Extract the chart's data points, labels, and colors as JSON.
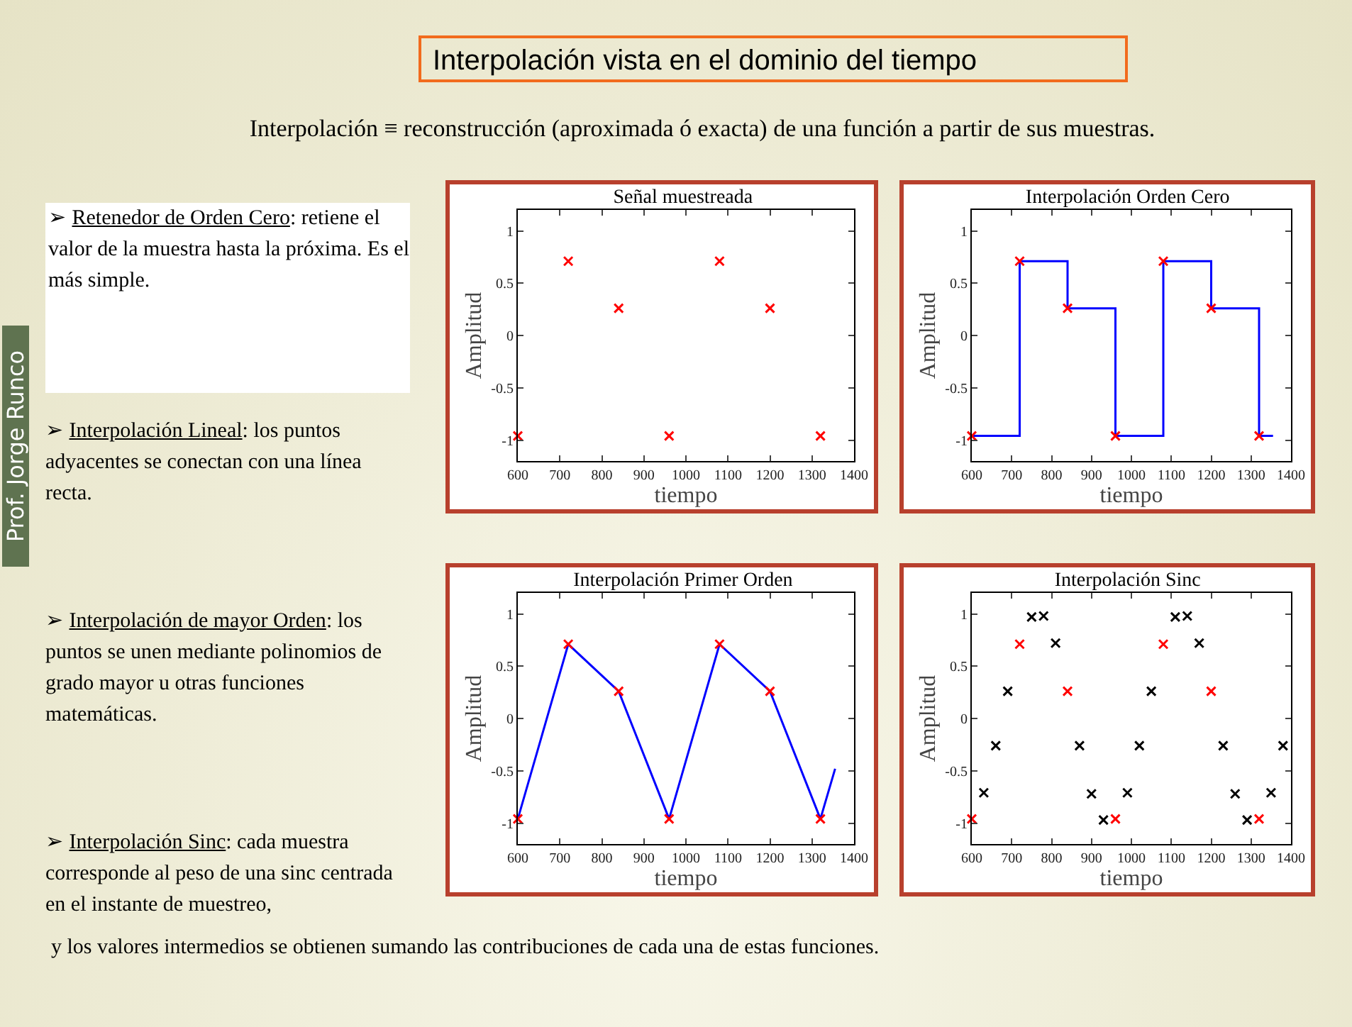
{
  "chart_data": [
    {
      "type": "other",
      "title": "Interpolación vista en el dominio del tiempo",
      "subtitle": "Interpolación ≡ reconstrucción (aproximada ó exacta) de una función a partir de sus muestras.",
      "annotations": [
        "➢ Retenedor de Orden Cero: retiene el valor de la muestra hasta la próxima. Es el más simple.",
        "➢ Interpolación Lineal: los puntos adyacentes se conectan con una línea recta.",
        "➢ Interpolación de mayor Orden: los puntos se unen mediante polinomios de grado mayor u otras funciones matemáticas.",
        "➢ Interpolación Sinc: cada muestra corresponde al peso de una sinc centrada en el instante de muestreo,",
        "y los valores intermedios se obtienen sumando las contribuciones de cada una de estas funciones.",
        "Prof. Jorge Runco"
      ]
    },
    {
      "type": "scatter",
      "title": "Señal muestreada",
      "xlabel": "tiempo",
      "ylabel": "Amplitud",
      "xlim": [
        600,
        1400
      ],
      "xticks": [
        600,
        700,
        800,
        900,
        1000,
        1100,
        1200,
        1300,
        1400
      ],
      "ylim": [
        -1.2,
        1.2
      ],
      "yticks": [
        -1,
        -0.5,
        0,
        0.5,
        1
      ],
      "grid": false,
      "marker": "cross",
      "series": [
        {
          "type": "scatter",
          "color": "#ff0000",
          "x": [
            600,
            720,
            840,
            960,
            1080,
            1200,
            1320
          ],
          "values": [
            -0.96,
            0.71,
            0.26,
            -0.96,
            0.71,
            0.26,
            -0.96
          ]
        }
      ]
    },
    {
      "type": "step",
      "title": "Interpolación Orden Cero",
      "xlabel": "tiempo",
      "ylabel": "Amplitud",
      "xlim": [
        600,
        1400
      ],
      "xticks": [
        600,
        700,
        800,
        900,
        1000,
        1100,
        1200,
        1300,
        1400
      ],
      "ylim": [
        -1.2,
        1.2
      ],
      "yticks": [
        -1,
        -0.5,
        0,
        0.5,
        1
      ],
      "grid": false,
      "marker": "cross",
      "line_style": "solid",
      "series": [
        {
          "type": "step",
          "marker": "none",
          "color": "#0000ff",
          "x": [
            600,
            720,
            840,
            960,
            1080,
            1200,
            1320,
            1355
          ],
          "values": [
            -0.96,
            0.71,
            0.26,
            -0.96,
            0.71,
            0.26,
            -0.96,
            -0.96
          ]
        },
        {
          "type": "scatter",
          "color": "#ff0000",
          "x": [
            600,
            720,
            840,
            960,
            1080,
            1200,
            1320
          ],
          "values": [
            -0.96,
            0.71,
            0.26,
            -0.96,
            0.71,
            0.26,
            -0.96
          ]
        }
      ]
    },
    {
      "type": "line",
      "title": "Interpolación Primer Orden",
      "xlabel": "tiempo",
      "ylabel": "Amplitud",
      "xlim": [
        600,
        1400
      ],
      "xticks": [
        600,
        700,
        800,
        900,
        1000,
        1100,
        1200,
        1300,
        1400
      ],
      "ylim": [
        -1.2,
        1.2
      ],
      "yticks": [
        -1,
        -0.5,
        0,
        0.5,
        1
      ],
      "grid": false,
      "marker": "cross",
      "line_style": "solid",
      "series": [
        {
          "type": "line",
          "marker": "none",
          "color": "#0000ff",
          "x": [
            600,
            720,
            840,
            960,
            1080,
            1200,
            1320,
            1355
          ],
          "values": [
            -0.96,
            0.71,
            0.26,
            -0.96,
            0.71,
            0.26,
            -0.96,
            -0.48
          ]
        },
        {
          "type": "scatter",
          "color": "#ff0000",
          "x": [
            600,
            720,
            840,
            960,
            1080,
            1200,
            1320
          ],
          "values": [
            -0.96,
            0.71,
            0.26,
            -0.96,
            0.71,
            0.26,
            -0.96
          ]
        }
      ]
    },
    {
      "type": "scatter",
      "title": "Interpolación Sinc",
      "xlabel": "tiempo",
      "ylabel": "Amplitud",
      "xlim": [
        600,
        1400
      ],
      "xticks": [
        600,
        700,
        800,
        900,
        1000,
        1100,
        1200,
        1300,
        1400
      ],
      "ylim": [
        -1.2,
        1.2
      ],
      "yticks": [
        -1,
        -0.5,
        0,
        0.5,
        1
      ],
      "grid": false,
      "marker": "cross",
      "series": [
        {
          "type": "scatter",
          "color": "#000000",
          "x": [
            630,
            660,
            690,
            750,
            780,
            810,
            870,
            900,
            930,
            990,
            1020,
            1050,
            1110,
            1140,
            1170,
            1230,
            1260,
            1290,
            1350,
            1380
          ],
          "values": [
            -0.71,
            -0.26,
            0.26,
            0.97,
            0.98,
            0.72,
            -0.26,
            -0.72,
            -0.97,
            -0.71,
            -0.26,
            0.26,
            0.97,
            0.98,
            0.72,
            -0.26,
            -0.72,
            -0.97,
            -0.71,
            -0.26
          ]
        },
        {
          "type": "scatter",
          "color": "#ff0000",
          "x": [
            600,
            720,
            840,
            960,
            1080,
            1200,
            1320
          ],
          "values": [
            -0.96,
            0.71,
            0.26,
            -0.96,
            0.71,
            0.26,
            -0.96
          ]
        }
      ]
    }
  ]
}
